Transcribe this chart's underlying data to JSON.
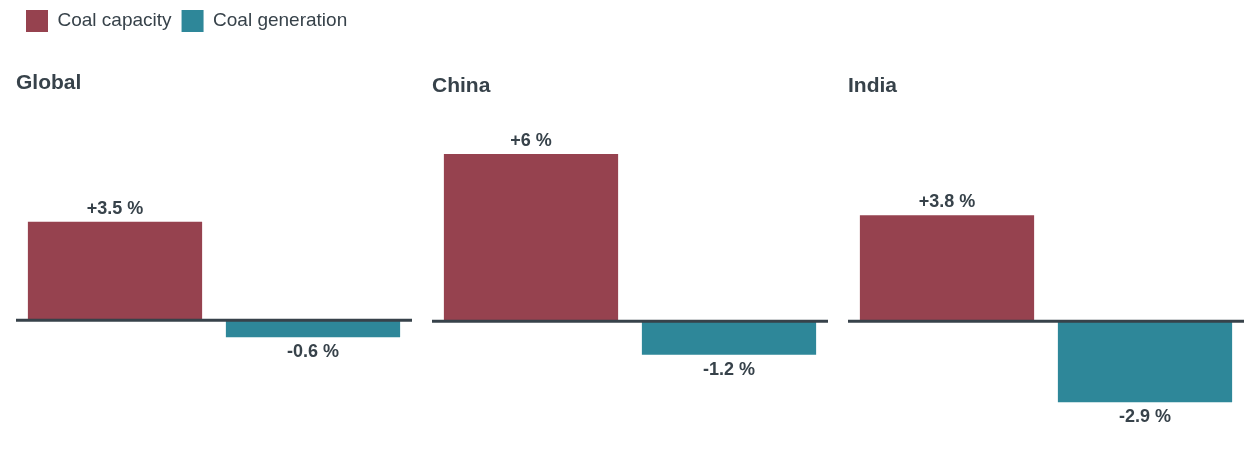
{
  "chart_data": [
    {
      "type": "bar",
      "title": "Global",
      "categories": [
        null
      ],
      "legend": "top left",
      "tick_labels": false,
      "series": [
        {
          "name": "Coal capacity",
          "color": "#96424f",
          "values": [
            3.5
          ],
          "value_labels": [
            "+3.5 %"
          ]
        },
        {
          "name": "Coal generation",
          "color": "#2e8799",
          "values": [
            -0.6
          ],
          "value_labels": [
            "-0.6 %"
          ]
        }
      ]
    },
    {
      "type": "bar",
      "title": "China",
      "categories": [
        null
      ],
      "tick_labels": false,
      "series": [
        {
          "color": "#96424f",
          "values": [
            6
          ],
          "value_labels": [
            "+6 %"
          ]
        },
        {
          "color": "#2e8799",
          "values": [
            -1.2
          ],
          "value_labels": [
            "-1.2 %"
          ]
        }
      ]
    },
    {
      "type": "bar",
      "title": "India",
      "categories": [
        null
      ],
      "tick_labels": false,
      "series": [
        {
          "color": "#96424f",
          "values": [
            3.8
          ],
          "value_labels": [
            "+3.8 %"
          ]
        },
        {
          "color": "#2e8799",
          "values": [
            -2.9
          ],
          "value_labels": [
            "-2.9 %"
          ]
        }
      ]
    }
  ]
}
